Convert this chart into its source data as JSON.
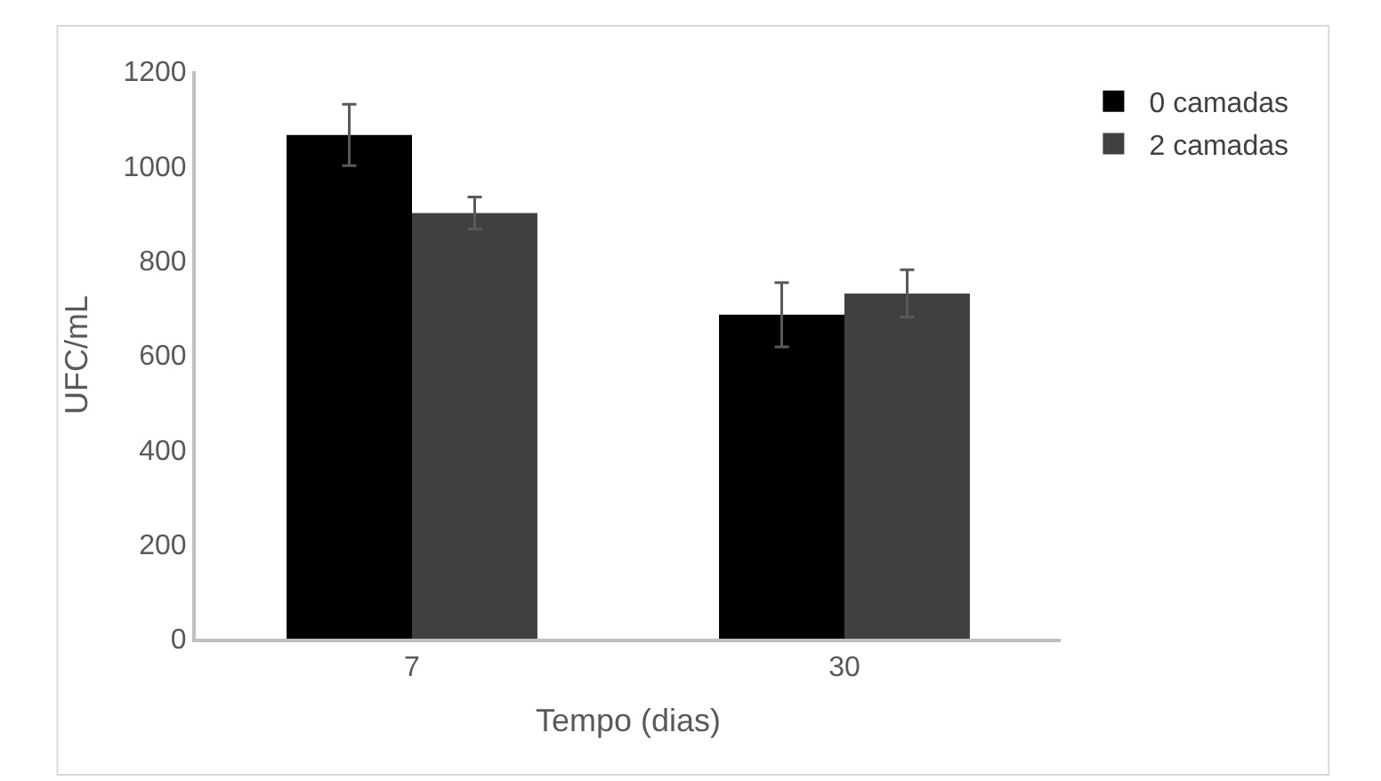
{
  "chart_data": {
    "type": "bar",
    "xlabel": "Tempo (dias)",
    "ylabel": "UFC/mL",
    "categories": [
      "7",
      "30"
    ],
    "series": [
      {
        "name": "0 camadas",
        "color": "#000000",
        "values": [
          1065,
          685
        ],
        "errors": [
          65,
          68
        ]
      },
      {
        "name": "2 camadas",
        "color": "#404040",
        "values": [
          900,
          730
        ],
        "errors": [
          34,
          50
        ]
      }
    ],
    "ylim": [
      0,
      1200
    ],
    "yticks": [
      0,
      200,
      400,
      600,
      800,
      1000,
      1200
    ],
    "legend": "top right"
  }
}
